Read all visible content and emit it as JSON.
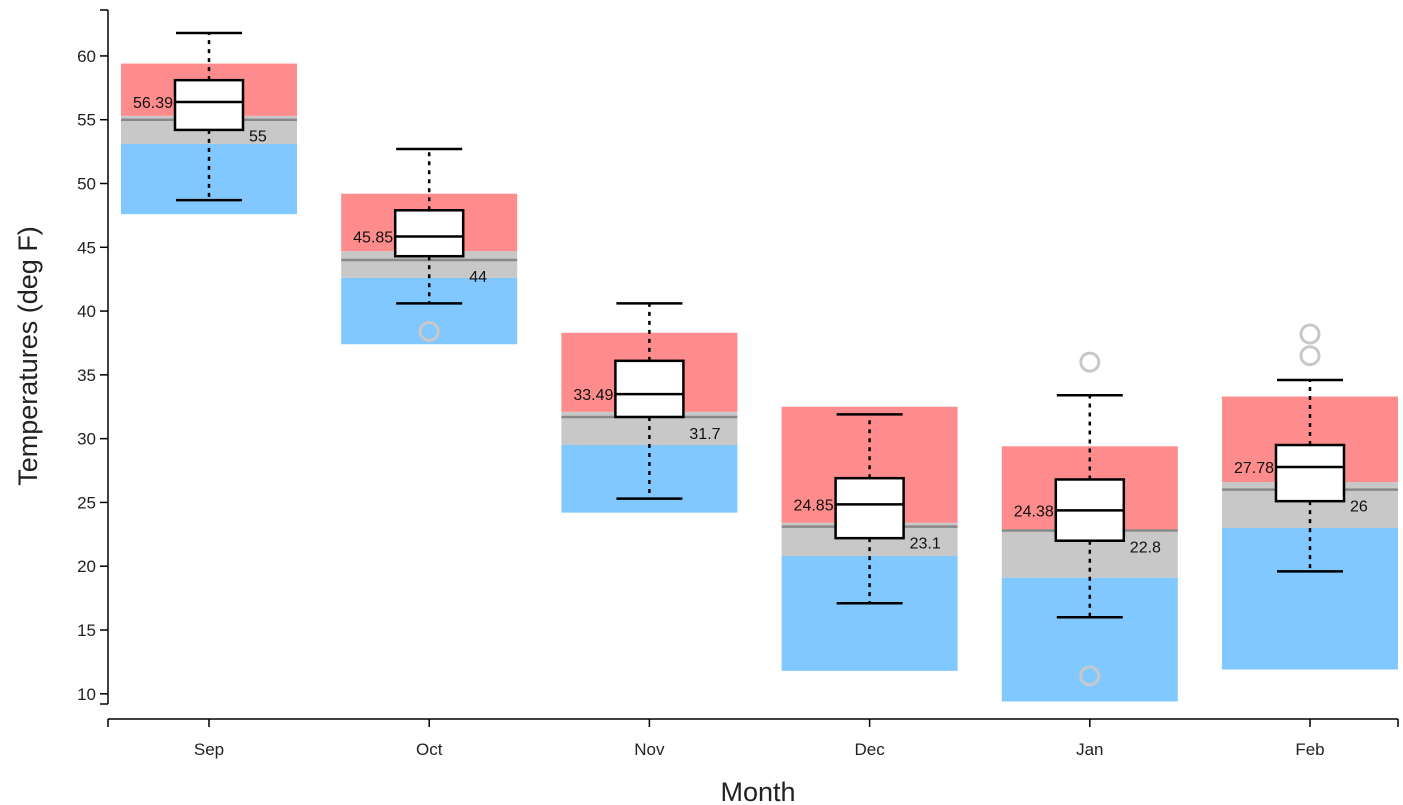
{
  "chart_data": {
    "type": "box",
    "xlabel": "Month",
    "ylabel": "Temperatures (deg F)",
    "ylim": [
      9.2,
      63.6
    ],
    "yticks": [
      10,
      15,
      20,
      25,
      30,
      35,
      40,
      45,
      50,
      55,
      60
    ],
    "categories": [
      "Sep",
      "Oct",
      "Nov",
      "Dec",
      "Jan",
      "Feb"
    ],
    "colors": {
      "upper_band": "#ff8c8c",
      "normal_band": "#c8c8c8",
      "lower_band": "#80c8ff",
      "box_fill": "#ffffff",
      "stroke": "#000000",
      "outlier": "#c8c8c8",
      "normal_line": "#888888"
    },
    "months": [
      {
        "label": "Sep",
        "whisker_low": 48.7,
        "q1": 54.2,
        "median": 56.39,
        "q3": 58.1,
        "whisker_high": 61.8,
        "outliers": [],
        "mean_label": "56.39",
        "normal": 55,
        "normal_label": "55",
        "band_low": 47.6,
        "band_normal_low": 53.1,
        "band_normal_high": 55.3,
        "band_high": 59.4
      },
      {
        "label": "Oct",
        "whisker_low": 40.6,
        "q1": 44.3,
        "median": 45.85,
        "q3": 47.9,
        "whisker_high": 52.7,
        "outliers": [
          38.4
        ],
        "mean_label": "45.85",
        "normal": 44,
        "normal_label": "44",
        "band_low": 37.4,
        "band_normal_low": 42.6,
        "band_normal_high": 44.7,
        "band_high": 49.2
      },
      {
        "label": "Nov",
        "whisker_low": 25.3,
        "q1": 31.7,
        "median": 33.49,
        "q3": 36.1,
        "whisker_high": 40.6,
        "outliers": [],
        "mean_label": "33.49",
        "normal": 31.7,
        "normal_label": "31.7",
        "band_low": 24.2,
        "band_normal_low": 29.5,
        "band_normal_high": 32.1,
        "band_high": 38.3
      },
      {
        "label": "Dec",
        "whisker_low": 17.1,
        "q1": 22.2,
        "median": 24.85,
        "q3": 26.9,
        "whisker_high": 31.9,
        "outliers": [],
        "mean_label": "24.85",
        "normal": 23.1,
        "normal_label": "23.1",
        "band_low": 11.8,
        "band_normal_low": 20.8,
        "band_normal_high": 23.4,
        "band_high": 32.5
      },
      {
        "label": "Jan",
        "whisker_low": 16.0,
        "q1": 22.0,
        "median": 24.38,
        "q3": 26.8,
        "whisker_high": 33.4,
        "outliers": [
          36.0,
          11.4
        ],
        "mean_label": "24.38",
        "normal": 22.8,
        "normal_label": "22.8",
        "band_low": 9.4,
        "band_normal_low": 19.1,
        "band_normal_high": 22.9,
        "band_high": 29.4
      },
      {
        "label": "Feb",
        "whisker_low": 19.6,
        "q1": 25.1,
        "median": 27.78,
        "q3": 29.5,
        "whisker_high": 34.6,
        "outliers": [
          38.2,
          36.5
        ],
        "mean_label": "27.78",
        "normal": 26,
        "normal_label": "26",
        "band_low": 11.9,
        "band_normal_low": 23.0,
        "band_normal_high": 26.6,
        "band_high": 33.3
      }
    ],
    "grid": false,
    "legend": "none"
  }
}
